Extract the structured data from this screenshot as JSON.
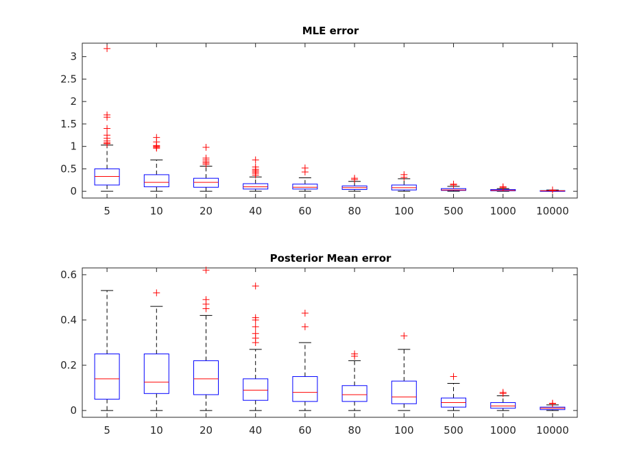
{
  "colors": {
    "box": "#0000ff",
    "median": "#ff0000",
    "whisker": "#000000",
    "outlier": "#ff0000",
    "axis": "#262626"
  },
  "chart_data": [
    {
      "type": "box",
      "title": "MLE error",
      "xlabel": "",
      "ylabel": "",
      "ylim": [
        -0.15,
        3.3
      ],
      "yticks": [
        0,
        0.5,
        1,
        1.5,
        2,
        2.5,
        3
      ],
      "ytick_labels": [
        "0",
        "0.5",
        "1",
        "1.5",
        "2",
        "2.5",
        "3"
      ],
      "categories": [
        "5",
        "10",
        "20",
        "40",
        "60",
        "80",
        "100",
        "500",
        "1000",
        "10000"
      ],
      "boxes": [
        {
          "min": 0.0,
          "q1": 0.14,
          "median": 0.33,
          "q3": 0.5,
          "max": 1.03,
          "outliers": [
            1.06,
            1.08,
            1.12,
            1.18,
            1.25,
            1.4,
            1.65,
            1.7,
            3.18
          ]
        },
        {
          "min": 0.0,
          "q1": 0.1,
          "median": 0.2,
          "q3": 0.37,
          "max": 0.7,
          "outliers": [
            0.96,
            0.98,
            1.0,
            1.02,
            1.1,
            1.2
          ]
        },
        {
          "min": 0.0,
          "q1": 0.09,
          "median": 0.2,
          "q3": 0.29,
          "max": 0.56,
          "outliers": [
            0.6,
            0.63,
            0.66,
            0.7,
            0.74,
            0.98
          ]
        },
        {
          "min": 0.0,
          "q1": 0.05,
          "median": 0.1,
          "q3": 0.17,
          "max": 0.32,
          "outliers": [
            0.36,
            0.4,
            0.43,
            0.46,
            0.49,
            0.54,
            0.7
          ]
        },
        {
          "min": 0.0,
          "q1": 0.05,
          "median": 0.09,
          "q3": 0.16,
          "max": 0.3,
          "outliers": [
            0.43,
            0.52
          ]
        },
        {
          "min": 0.0,
          "q1": 0.04,
          "median": 0.08,
          "q3": 0.12,
          "max": 0.22,
          "outliers": [
            0.26,
            0.29
          ]
        },
        {
          "min": 0.0,
          "q1": 0.03,
          "median": 0.08,
          "q3": 0.14,
          "max": 0.28,
          "outliers": [
            0.31,
            0.37
          ]
        },
        {
          "min": 0.0,
          "q1": 0.02,
          "median": 0.03,
          "q3": 0.06,
          "max": 0.11,
          "outliers": [
            0.14,
            0.16
          ]
        },
        {
          "min": 0.0,
          "q1": 0.01,
          "median": 0.02,
          "q3": 0.04,
          "max": 0.06,
          "outliers": [
            0.08,
            0.1
          ]
        },
        {
          "min": 0.0,
          "q1": 0.005,
          "median": 0.01,
          "q3": 0.015,
          "max": 0.03,
          "outliers": [
            0.03
          ]
        }
      ]
    },
    {
      "type": "box",
      "title": "Posterior Mean error",
      "xlabel": "",
      "ylabel": "",
      "ylim": [
        -0.03,
        0.63
      ],
      "yticks": [
        0,
        0.2,
        0.4,
        0.6
      ],
      "ytick_labels": [
        "0",
        "0.2",
        "0.4",
        "0.6"
      ],
      "categories": [
        "5",
        "10",
        "20",
        "40",
        "60",
        "80",
        "100",
        "500",
        "1000",
        "10000"
      ],
      "boxes": [
        {
          "min": 0.0,
          "q1": 0.05,
          "median": 0.14,
          "q3": 0.25,
          "max": 0.53,
          "outliers": []
        },
        {
          "min": 0.0,
          "q1": 0.075,
          "median": 0.125,
          "q3": 0.25,
          "max": 0.46,
          "outliers": [
            0.52
          ]
        },
        {
          "min": 0.0,
          "q1": 0.07,
          "median": 0.14,
          "q3": 0.22,
          "max": 0.42,
          "outliers": [
            0.45,
            0.47,
            0.49,
            0.62
          ]
        },
        {
          "min": 0.0,
          "q1": 0.045,
          "median": 0.09,
          "q3": 0.14,
          "max": 0.27,
          "outliers": [
            0.3,
            0.32,
            0.34,
            0.37,
            0.4,
            0.41,
            0.55
          ]
        },
        {
          "min": 0.0,
          "q1": 0.04,
          "median": 0.08,
          "q3": 0.15,
          "max": 0.3,
          "outliers": [
            0.37,
            0.43
          ]
        },
        {
          "min": 0.0,
          "q1": 0.04,
          "median": 0.07,
          "q3": 0.11,
          "max": 0.22,
          "outliers": [
            0.24,
            0.25
          ]
        },
        {
          "min": 0.0,
          "q1": 0.03,
          "median": 0.06,
          "q3": 0.13,
          "max": 0.27,
          "outliers": [
            0.33
          ]
        },
        {
          "min": 0.0,
          "q1": 0.015,
          "median": 0.035,
          "q3": 0.055,
          "max": 0.12,
          "outliers": [
            0.15
          ]
        },
        {
          "min": 0.0,
          "q1": 0.01,
          "median": 0.02,
          "q3": 0.035,
          "max": 0.065,
          "outliers": [
            0.075,
            0.08
          ]
        },
        {
          "min": 0.0,
          "q1": 0.004,
          "median": 0.01,
          "q3": 0.015,
          "max": 0.025,
          "outliers": [
            0.03,
            0.032
          ]
        }
      ]
    }
  ]
}
